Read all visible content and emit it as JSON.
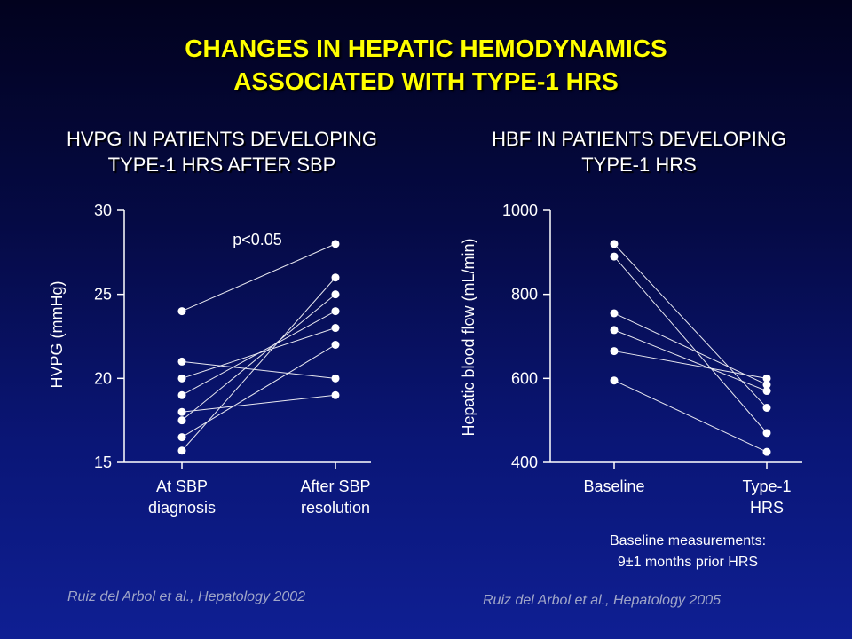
{
  "slide": {
    "title_line1": "CHANGES IN HEPATIC HEMODYNAMICS",
    "title_line2": "ASSOCIATED WITH TYPE-1 HRS",
    "left_subtitle_line1": "HVPG IN PATIENTS DEVELOPING",
    "left_subtitle_line2": "TYPE-1 HRS AFTER SBP",
    "right_subtitle_line1": "HBF IN PATIENTS DEVELOPING",
    "right_subtitle_line2": "TYPE-1 HRS",
    "left_citation": "Ruiz del Arbol et al., Hepatology 2002",
    "right_citation": "Ruiz del Arbol et al., Hepatology 2005",
    "note_line1": "Baseline measurements:",
    "note_line2": "9±1 months prior HRS",
    "colors": {
      "background": "#0a1677",
      "title": "#ffff00",
      "marks": "#ffffff",
      "citation": "#a0a6c8"
    }
  },
  "chart_data": [
    {
      "type": "line",
      "ylabel": "HVPG (mmHg)",
      "ylim": [
        15,
        30
      ],
      "yticks": [
        "15",
        "20",
        "25",
        "30"
      ],
      "categories": [
        [
          "At SBP",
          "diagnosis"
        ],
        [
          "After SBP",
          "resolution"
        ]
      ],
      "annotation": "p<0.05",
      "pairs": [
        [
          24,
          28
        ],
        [
          21,
          20
        ],
        [
          20,
          23
        ],
        [
          19,
          24
        ],
        [
          18,
          19
        ],
        [
          17.5,
          25
        ],
        [
          16.5,
          22
        ],
        [
          15.7,
          26
        ]
      ]
    },
    {
      "type": "line",
      "ylabel": "Hepatic blood flow (mL/min)",
      "ylim": [
        400,
        1000
      ],
      "yticks": [
        "400",
        "600",
        "800",
        "1000"
      ],
      "categories": [
        [
          "Baseline"
        ],
        [
          "Type-1",
          "HRS"
        ]
      ],
      "pairs": [
        [
          920,
          530
        ],
        [
          890,
          470
        ],
        [
          755,
          585
        ],
        [
          715,
          570
        ],
        [
          665,
          600
        ],
        [
          595,
          425
        ]
      ]
    }
  ]
}
